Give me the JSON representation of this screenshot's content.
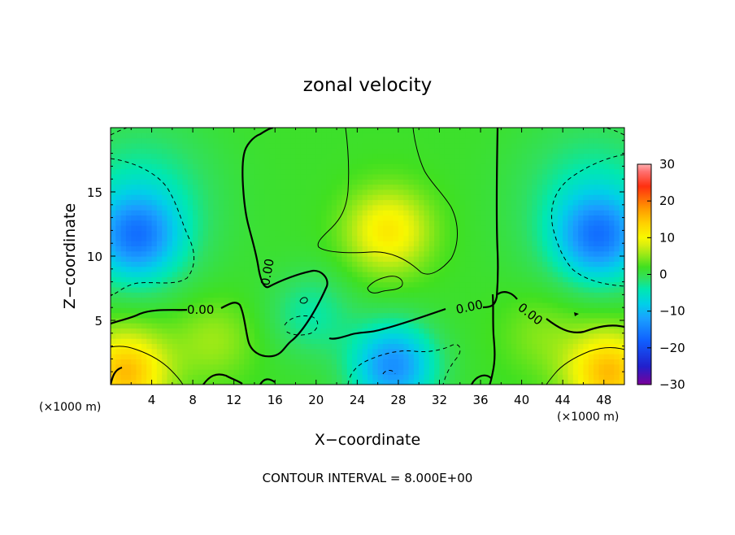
{
  "chart_data": {
    "type": "heatmap",
    "title": "zonal velocity",
    "xlabel": "X−coordinate",
    "ylabel": "Z−coordinate",
    "x_unit_left": "(×1000 m)",
    "x_unit_right": "(×1000 m)",
    "footer": "CONTOUR INTERVAL = 8.000E+00",
    "xlim": [
      0,
      50
    ],
    "ylim": [
      0,
      20
    ],
    "xticks": [
      4,
      8,
      12,
      16,
      20,
      24,
      28,
      32,
      36,
      40,
      44,
      48
    ],
    "xtick_labels": [
      "4",
      "8",
      "12",
      "16",
      "20",
      "24",
      "28",
      "32",
      "36",
      "40",
      "44",
      "48"
    ],
    "yticks": [
      5,
      10,
      15
    ],
    "ytick_labels": [
      "5",
      "10",
      "15"
    ],
    "colorbar": {
      "range": [
        -30,
        30
      ],
      "ticks": [
        30,
        20,
        10,
        0,
        -10,
        -20,
        -30
      ],
      "tick_labels": [
        "30",
        "20",
        "10",
        "0",
        "−10",
        "−20",
        "−30"
      ],
      "stops": [
        {
          "value": -30,
          "color": "#7a0099"
        },
        {
          "value": -25,
          "color": "#2020cc"
        },
        {
          "value": -18,
          "color": "#1060ff"
        },
        {
          "value": -12,
          "color": "#1aa0ff"
        },
        {
          "value": -8,
          "color": "#00d0e8"
        },
        {
          "value": -4,
          "color": "#00e8b0"
        },
        {
          "value": -1,
          "color": "#30e060"
        },
        {
          "value": 2,
          "color": "#40e020"
        },
        {
          "value": 5,
          "color": "#90e818"
        },
        {
          "value": 8,
          "color": "#d8ee10"
        },
        {
          "value": 10,
          "color": "#f8f800"
        },
        {
          "value": 14,
          "color": "#ffd000"
        },
        {
          "value": 18,
          "color": "#ff9800"
        },
        {
          "value": 24,
          "color": "#ff3010"
        },
        {
          "value": 28,
          "color": "#ff7070"
        },
        {
          "value": 30,
          "color": "#ffb0b0"
        }
      ]
    },
    "contour_labels": [
      "0.00",
      "0.00",
      "0.00",
      "0.00"
    ],
    "field_features": [
      {
        "x": 2.5,
        "z": 11.5,
        "value": -13
      },
      {
        "x": 47.5,
        "z": 11.5,
        "value": -13
      },
      {
        "x": 1.5,
        "z": 1.0,
        "value": 14
      },
      {
        "x": 48.5,
        "z": 1.0,
        "value": 14
      },
      {
        "x": 27.5,
        "z": 1.5,
        "value": -15
      },
      {
        "x": 27.0,
        "z": 12.0,
        "value": 10
      },
      {
        "x": 19.5,
        "z": 5.5,
        "value": -5
      },
      {
        "x": 10.0,
        "z": 3.5,
        "value": 4
      },
      {
        "x": 42.0,
        "z": 4.0,
        "value": 3
      }
    ]
  }
}
